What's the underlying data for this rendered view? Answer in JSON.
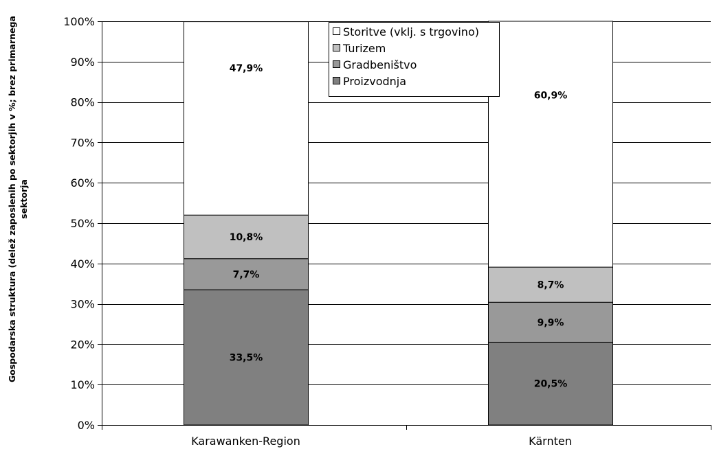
{
  "chart_data": {
    "type": "bar",
    "stacked": true,
    "ylabel_lines": [
      "Gospodarska struktura (delež zaposlenih po sektorjih v %; brez primarnega",
      "sektorja"
    ],
    "xlabel": "",
    "categories": [
      "Karawanken-Region",
      "Kärnten"
    ],
    "series": [
      {
        "name": "Proizvodnja",
        "values": [
          33.5,
          20.5
        ],
        "labels": [
          "33,5%",
          "20,5%"
        ],
        "color": "#808080"
      },
      {
        "name": "Gradbeništvo",
        "values": [
          7.7,
          9.9
        ],
        "labels": [
          "7,7%",
          "9,9%"
        ],
        "color": "#999999"
      },
      {
        "name": "Turizem",
        "values": [
          10.8,
          8.7
        ],
        "labels": [
          "10,8%",
          "8,7%"
        ],
        "color": "#c0c0c0"
      },
      {
        "name": "Storitve (vklj. s trgovino)",
        "values": [
          47.9,
          60.9
        ],
        "labels": [
          "47,9%",
          "60,9%"
        ],
        "color": "#ffffff"
      }
    ],
    "yticks": [
      "0%",
      "10%",
      "20%",
      "30%",
      "40%",
      "50%",
      "60%",
      "70%",
      "80%",
      "90%",
      "100%"
    ],
    "ylim": [
      0,
      100
    ],
    "grid": true,
    "legend_position": "top-center",
    "legend_order": [
      "Storitve (vklj. s trgovino)",
      "Turizem",
      "Gradbeništvo",
      "Proizvodnja"
    ]
  }
}
